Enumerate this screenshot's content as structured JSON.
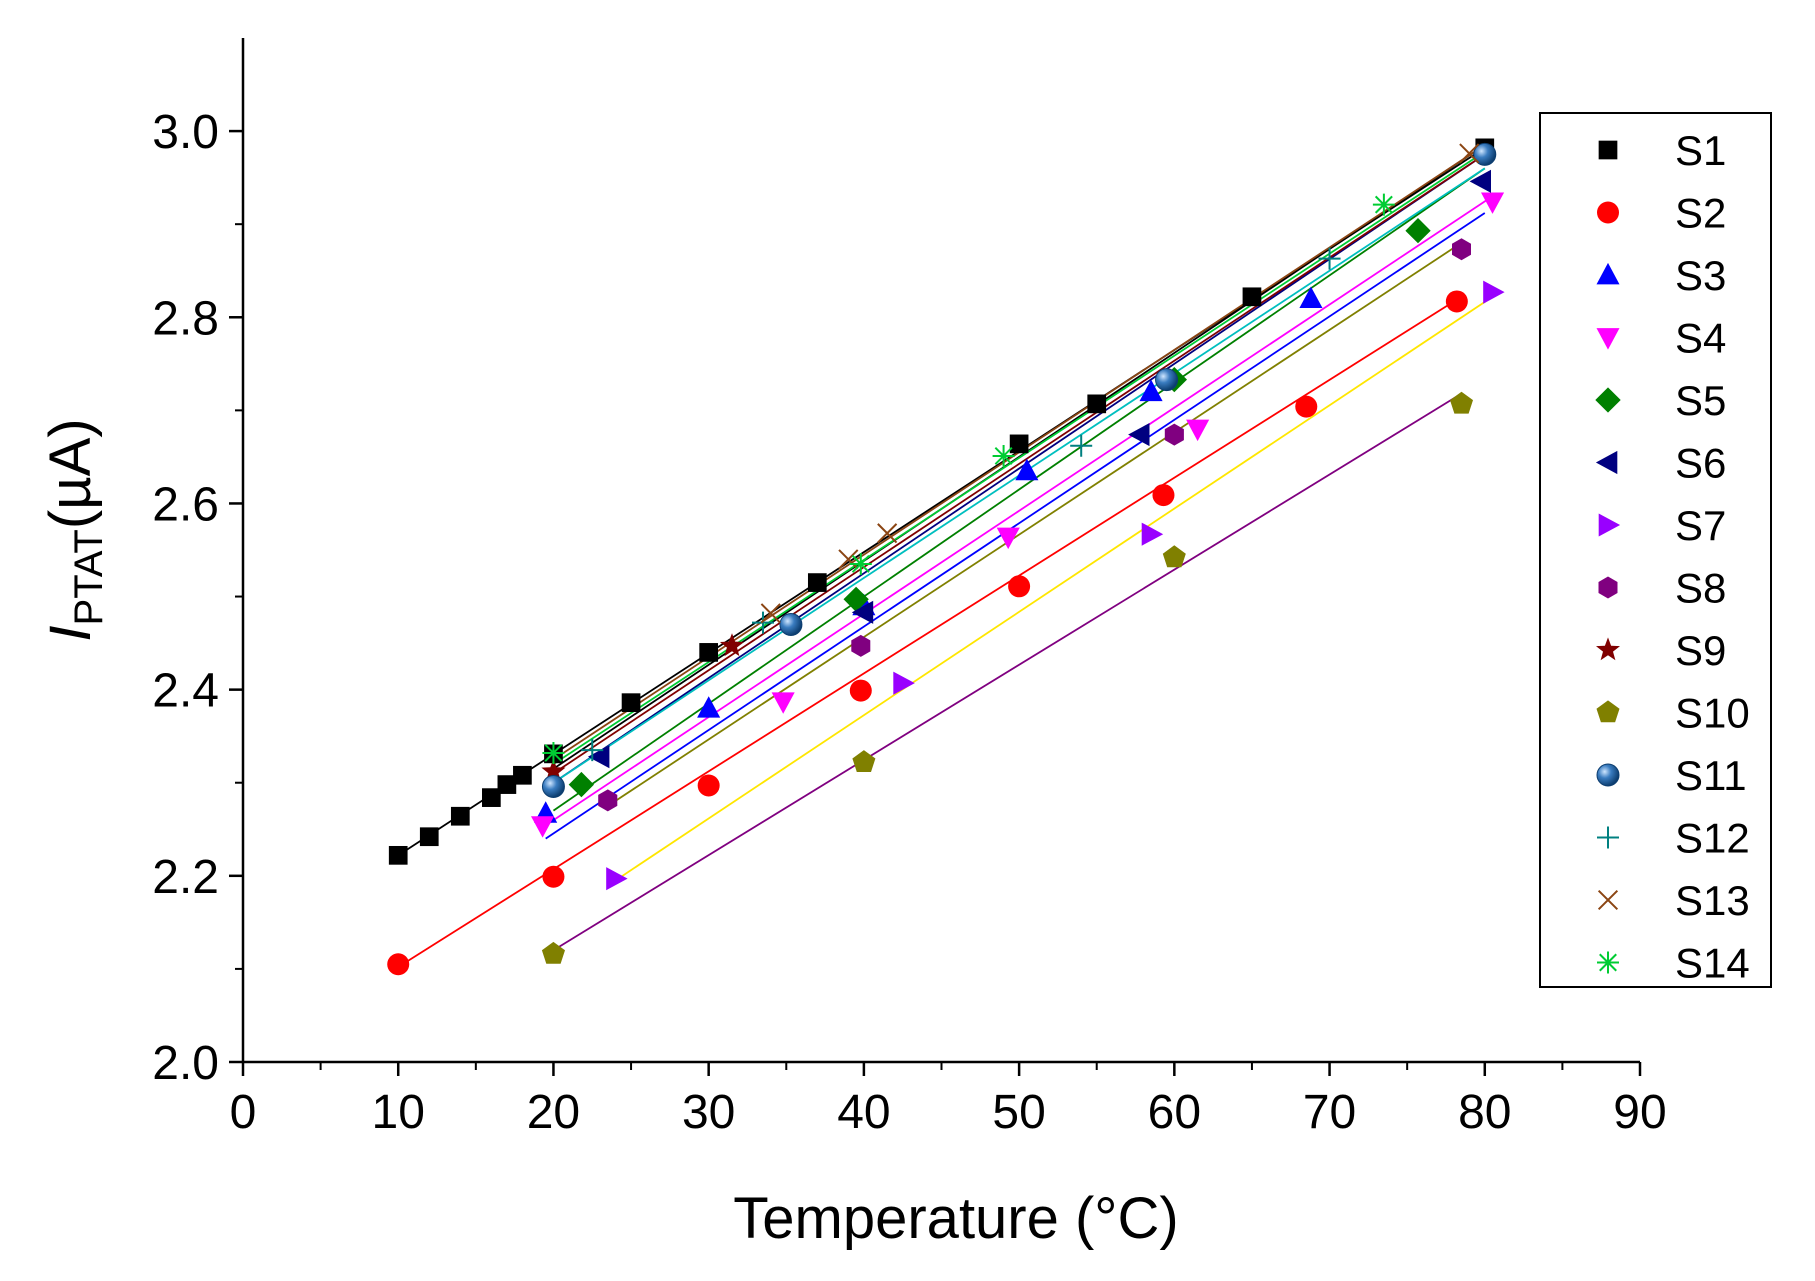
{
  "chart_data": {
    "type": "scatter",
    "title": "",
    "xlabel": "Temperature (°C)",
    "ylabel_main": "I",
    "ylabel_sub": "PTAT",
    "ylabel_unit": "(µA)",
    "xlim": [
      0,
      90
    ],
    "ylim": [
      2.0,
      3.1
    ],
    "xticks": [
      0,
      10,
      20,
      30,
      40,
      50,
      60,
      70,
      80,
      90
    ],
    "xtick_labels": [
      "0",
      "10",
      "20",
      "30",
      "40",
      "50",
      "60",
      "70",
      "80",
      "90"
    ],
    "yticks": [
      2.0,
      2.2,
      2.4,
      2.6,
      2.8,
      3.0
    ],
    "ytick_labels": [
      "2.0",
      "2.2",
      "2.4",
      "2.6",
      "2.8",
      "3.0"
    ],
    "grid": false,
    "legend_position": "right",
    "series": [
      {
        "name": "S1",
        "marker": "square",
        "color": "#000000",
        "line_color": "#000000",
        "x": [
          10,
          12,
          14,
          16,
          17,
          18,
          20,
          25,
          30,
          37,
          50,
          55,
          65,
          80
        ],
        "y": [
          2.222,
          2.242,
          2.264,
          2.284,
          2.298,
          2.308,
          2.331,
          2.386,
          2.44,
          2.515,
          2.664,
          2.707,
          2.822,
          2.982
        ]
      },
      {
        "name": "S2",
        "marker": "circle",
        "color": "#ff0000",
        "line_color": "#ff0000",
        "x": [
          10,
          20,
          30,
          39.8,
          50,
          59.3,
          68.5,
          78.2
        ],
        "y": [
          2.105,
          2.199,
          2.297,
          2.399,
          2.511,
          2.609,
          2.704,
          2.817
        ]
      },
      {
        "name": "S3",
        "marker": "triangle-up",
        "color": "#0000ff",
        "line_color": "#0000ff",
        "x": [
          19.5,
          30,
          40,
          50.5,
          58.5,
          68.8
        ],
        "y": [
          2.267,
          2.38,
          2.49,
          2.635,
          2.72,
          2.82
        ]
      },
      {
        "name": "S4",
        "marker": "triangle-down",
        "color": "#ff00ff",
        "line_color": "#ff00ff",
        "x": [
          19.3,
          34.8,
          49.3,
          61.5,
          80.5
        ],
        "y": [
          2.254,
          2.387,
          2.564,
          2.68,
          2.924
        ]
      },
      {
        "name": "S5",
        "marker": "diamond",
        "color": "#008000",
        "line_color": "#008000",
        "x": [
          21.8,
          39.5,
          60,
          75.7
        ],
        "y": [
          2.298,
          2.497,
          2.733,
          2.893
        ]
      },
      {
        "name": "S6",
        "marker": "triangle-left",
        "color": "#000080",
        "line_color": "#000080",
        "x": [
          23,
          40,
          57.8,
          79.8
        ],
        "y": [
          2.328,
          2.483,
          2.674,
          2.946
        ]
      },
      {
        "name": "S7",
        "marker": "triangle-right",
        "color": "#9900ff",
        "line_color": "#9900ff",
        "x": [
          24,
          42.5,
          58.5,
          80.5
        ],
        "y": [
          2.197,
          2.407,
          2.567,
          2.827
        ]
      },
      {
        "name": "S8",
        "marker": "hexagon",
        "color": "#800080",
        "line_color": "#808000",
        "x": [
          23.5,
          39.8,
          60,
          78.5
        ],
        "y": [
          2.281,
          2.447,
          2.674,
          2.873
        ]
      },
      {
        "name": "S9",
        "marker": "star",
        "color": "#800000",
        "line_color": "#800000",
        "x": [
          20,
          31.5
        ],
        "y": [
          2.312,
          2.447
        ]
      },
      {
        "name": "S10",
        "marker": "pentagon",
        "color": "#808000",
        "line_color": "#800080",
        "x": [
          20,
          40,
          60,
          78.5
        ],
        "y": [
          2.116,
          2.322,
          2.542,
          2.707
        ]
      },
      {
        "name": "S11",
        "marker": "sphere",
        "color": "#1f5f9f",
        "line_color": "#000000",
        "x": [
          20,
          35.3,
          59.5,
          80
        ],
        "y": [
          2.296,
          2.47,
          2.733,
          2.975
        ]
      },
      {
        "name": "S12",
        "marker": "plus",
        "color": "#008080",
        "line_color": "#00bfbf",
        "x": [
          22.5,
          33.5,
          54,
          70
        ],
        "y": [
          2.335,
          2.472,
          2.662,
          2.863
        ]
      },
      {
        "name": "S13",
        "marker": "x",
        "color": "#8b4513",
        "line_color": "#8b4513",
        "x": [
          34,
          39,
          41.5,
          79
        ],
        "y": [
          2.482,
          2.54,
          2.568,
          2.976
        ]
      },
      {
        "name": "S14",
        "marker": "asterisk",
        "color": "#00cc33",
        "line_color": "#00cc33",
        "x": [
          20,
          39.8,
          49,
          73.5
        ],
        "y": [
          2.332,
          2.535,
          2.651,
          2.921
        ]
      }
    ],
    "fit_lines": [
      {
        "name": "fit-S1",
        "color": "#000000",
        "x": [
          10,
          80
        ],
        "y": [
          2.222,
          2.982
        ]
      },
      {
        "name": "fit-S2",
        "color": "#ff0000",
        "x": [
          10,
          78.2
        ],
        "y": [
          2.102,
          2.819
        ]
      },
      {
        "name": "fit-S3",
        "color": "#0000ff",
        "x": [
          19.5,
          80
        ],
        "y": [
          2.24,
          2.912
        ]
      },
      {
        "name": "fit-S4",
        "color": "#ff00ff",
        "x": [
          19.3,
          80.5
        ],
        "y": [
          2.252,
          2.93
        ]
      },
      {
        "name": "fit-S5",
        "color": "#008000",
        "x": [
          20,
          80
        ],
        "y": [
          2.27,
          2.96
        ]
      },
      {
        "name": "fit-S6",
        "color": "#000080",
        "x": [
          20,
          80
        ],
        "y": [
          2.3,
          2.975
        ]
      },
      {
        "name": "fit-S7",
        "color": "#ffe600",
        "x": [
          24,
          80.5
        ],
        "y": [
          2.195,
          2.822
        ]
      },
      {
        "name": "fit-S8",
        "color": "#808000",
        "x": [
          23.5,
          78.5
        ],
        "y": [
          2.275,
          2.88
        ]
      },
      {
        "name": "fit-S9",
        "color": "#800000",
        "x": [
          20,
          80
        ],
        "y": [
          2.31,
          2.975
        ]
      },
      {
        "name": "fit-S10",
        "color": "#800080",
        "x": [
          20,
          78.5
        ],
        "y": [
          2.12,
          2.718
        ]
      },
      {
        "name": "fit-S11",
        "color": "#000000",
        "x": [
          20,
          80
        ],
        "y": [
          2.315,
          2.985
        ]
      },
      {
        "name": "fit-S12",
        "color": "#00bfbf",
        "x": [
          20,
          80
        ],
        "y": [
          2.3,
          2.96
        ]
      },
      {
        "name": "fit-S13",
        "color": "#8b4513",
        "x": [
          20,
          80
        ],
        "y": [
          2.325,
          2.985
        ]
      },
      {
        "name": "fit-S14",
        "color": "#00cc33",
        "x": [
          20,
          80
        ],
        "y": [
          2.32,
          2.978
        ]
      }
    ]
  }
}
